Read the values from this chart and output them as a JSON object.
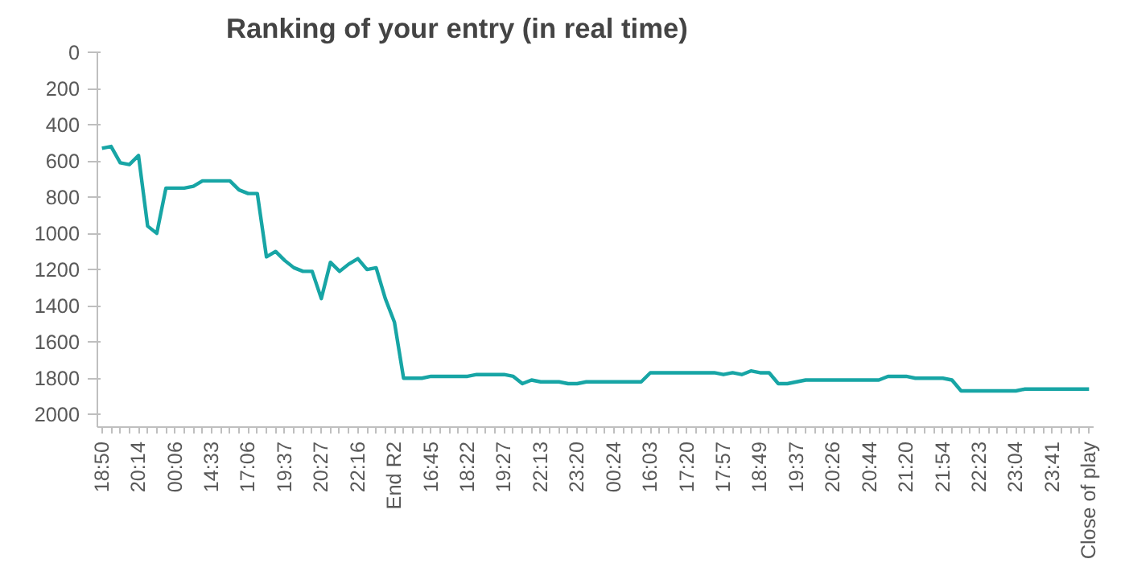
{
  "chart_data": {
    "type": "line",
    "title": "Ranking of your entry (in real time)",
    "categories": [
      "18:50",
      null,
      null,
      null,
      "20:14",
      null,
      null,
      null,
      "00:06",
      null,
      null,
      null,
      "14:33",
      null,
      null,
      null,
      "17:06",
      null,
      null,
      null,
      "19:37",
      null,
      null,
      null,
      "20:27",
      null,
      null,
      null,
      "22:16",
      null,
      null,
      null,
      "End R2",
      null,
      null,
      null,
      "16:45",
      null,
      null,
      null,
      "18:22",
      null,
      null,
      null,
      "19:27",
      null,
      null,
      null,
      "22:13",
      null,
      null,
      null,
      "23:20",
      null,
      null,
      null,
      "00:24",
      null,
      null,
      null,
      "16:03",
      null,
      null,
      null,
      "17:20",
      null,
      null,
      null,
      "17:57",
      null,
      null,
      null,
      "18:49",
      null,
      null,
      null,
      "19:37",
      null,
      null,
      null,
      "20:26",
      null,
      null,
      null,
      "20:44",
      null,
      null,
      null,
      "21:20",
      null,
      null,
      null,
      "21:54",
      null,
      null,
      null,
      "22:23",
      null,
      null,
      null,
      "23:04",
      null,
      null,
      null,
      "23:41",
      null,
      null,
      null,
      "Close of play"
    ],
    "series": [
      {
        "color": "#17a5a5",
        "values": [
          530,
          520,
          610,
          620,
          570,
          960,
          1000,
          750,
          750,
          750,
          740,
          710,
          710,
          710,
          710,
          760,
          780,
          780,
          1130,
          1100,
          1150,
          1190,
          1210,
          1210,
          1360,
          1160,
          1210,
          1170,
          1140,
          1200,
          1190,
          1360,
          1490,
          1800,
          1800,
          1800,
          1790,
          1790,
          1790,
          1790,
          1790,
          1780,
          1780,
          1780,
          1780,
          1790,
          1830,
          1810,
          1820,
          1820,
          1820,
          1830,
          1830,
          1820,
          1820,
          1820,
          1820,
          1820,
          1820,
          1820,
          1770,
          1770,
          1770,
          1770,
          1770,
          1770,
          1770,
          1770,
          1780,
          1770,
          1780,
          1760,
          1770,
          1770,
          1830,
          1830,
          1820,
          1810,
          1810,
          1810,
          1810,
          1810,
          1810,
          1810,
          1810,
          1810,
          1790,
          1790,
          1790,
          1800,
          1800,
          1800,
          1800,
          1810,
          1870,
          1870,
          1870,
          1870,
          1870,
          1870,
          1870,
          1860,
          1860,
          1860,
          1860,
          1860,
          1860,
          1860,
          1860
        ]
      }
    ],
    "ylim": [
      2070,
      0
    ],
    "yticks": [
      0,
      200,
      400,
      600,
      800,
      1000,
      1200,
      1400,
      1600,
      1800,
      2000
    ],
    "grid": false
  }
}
